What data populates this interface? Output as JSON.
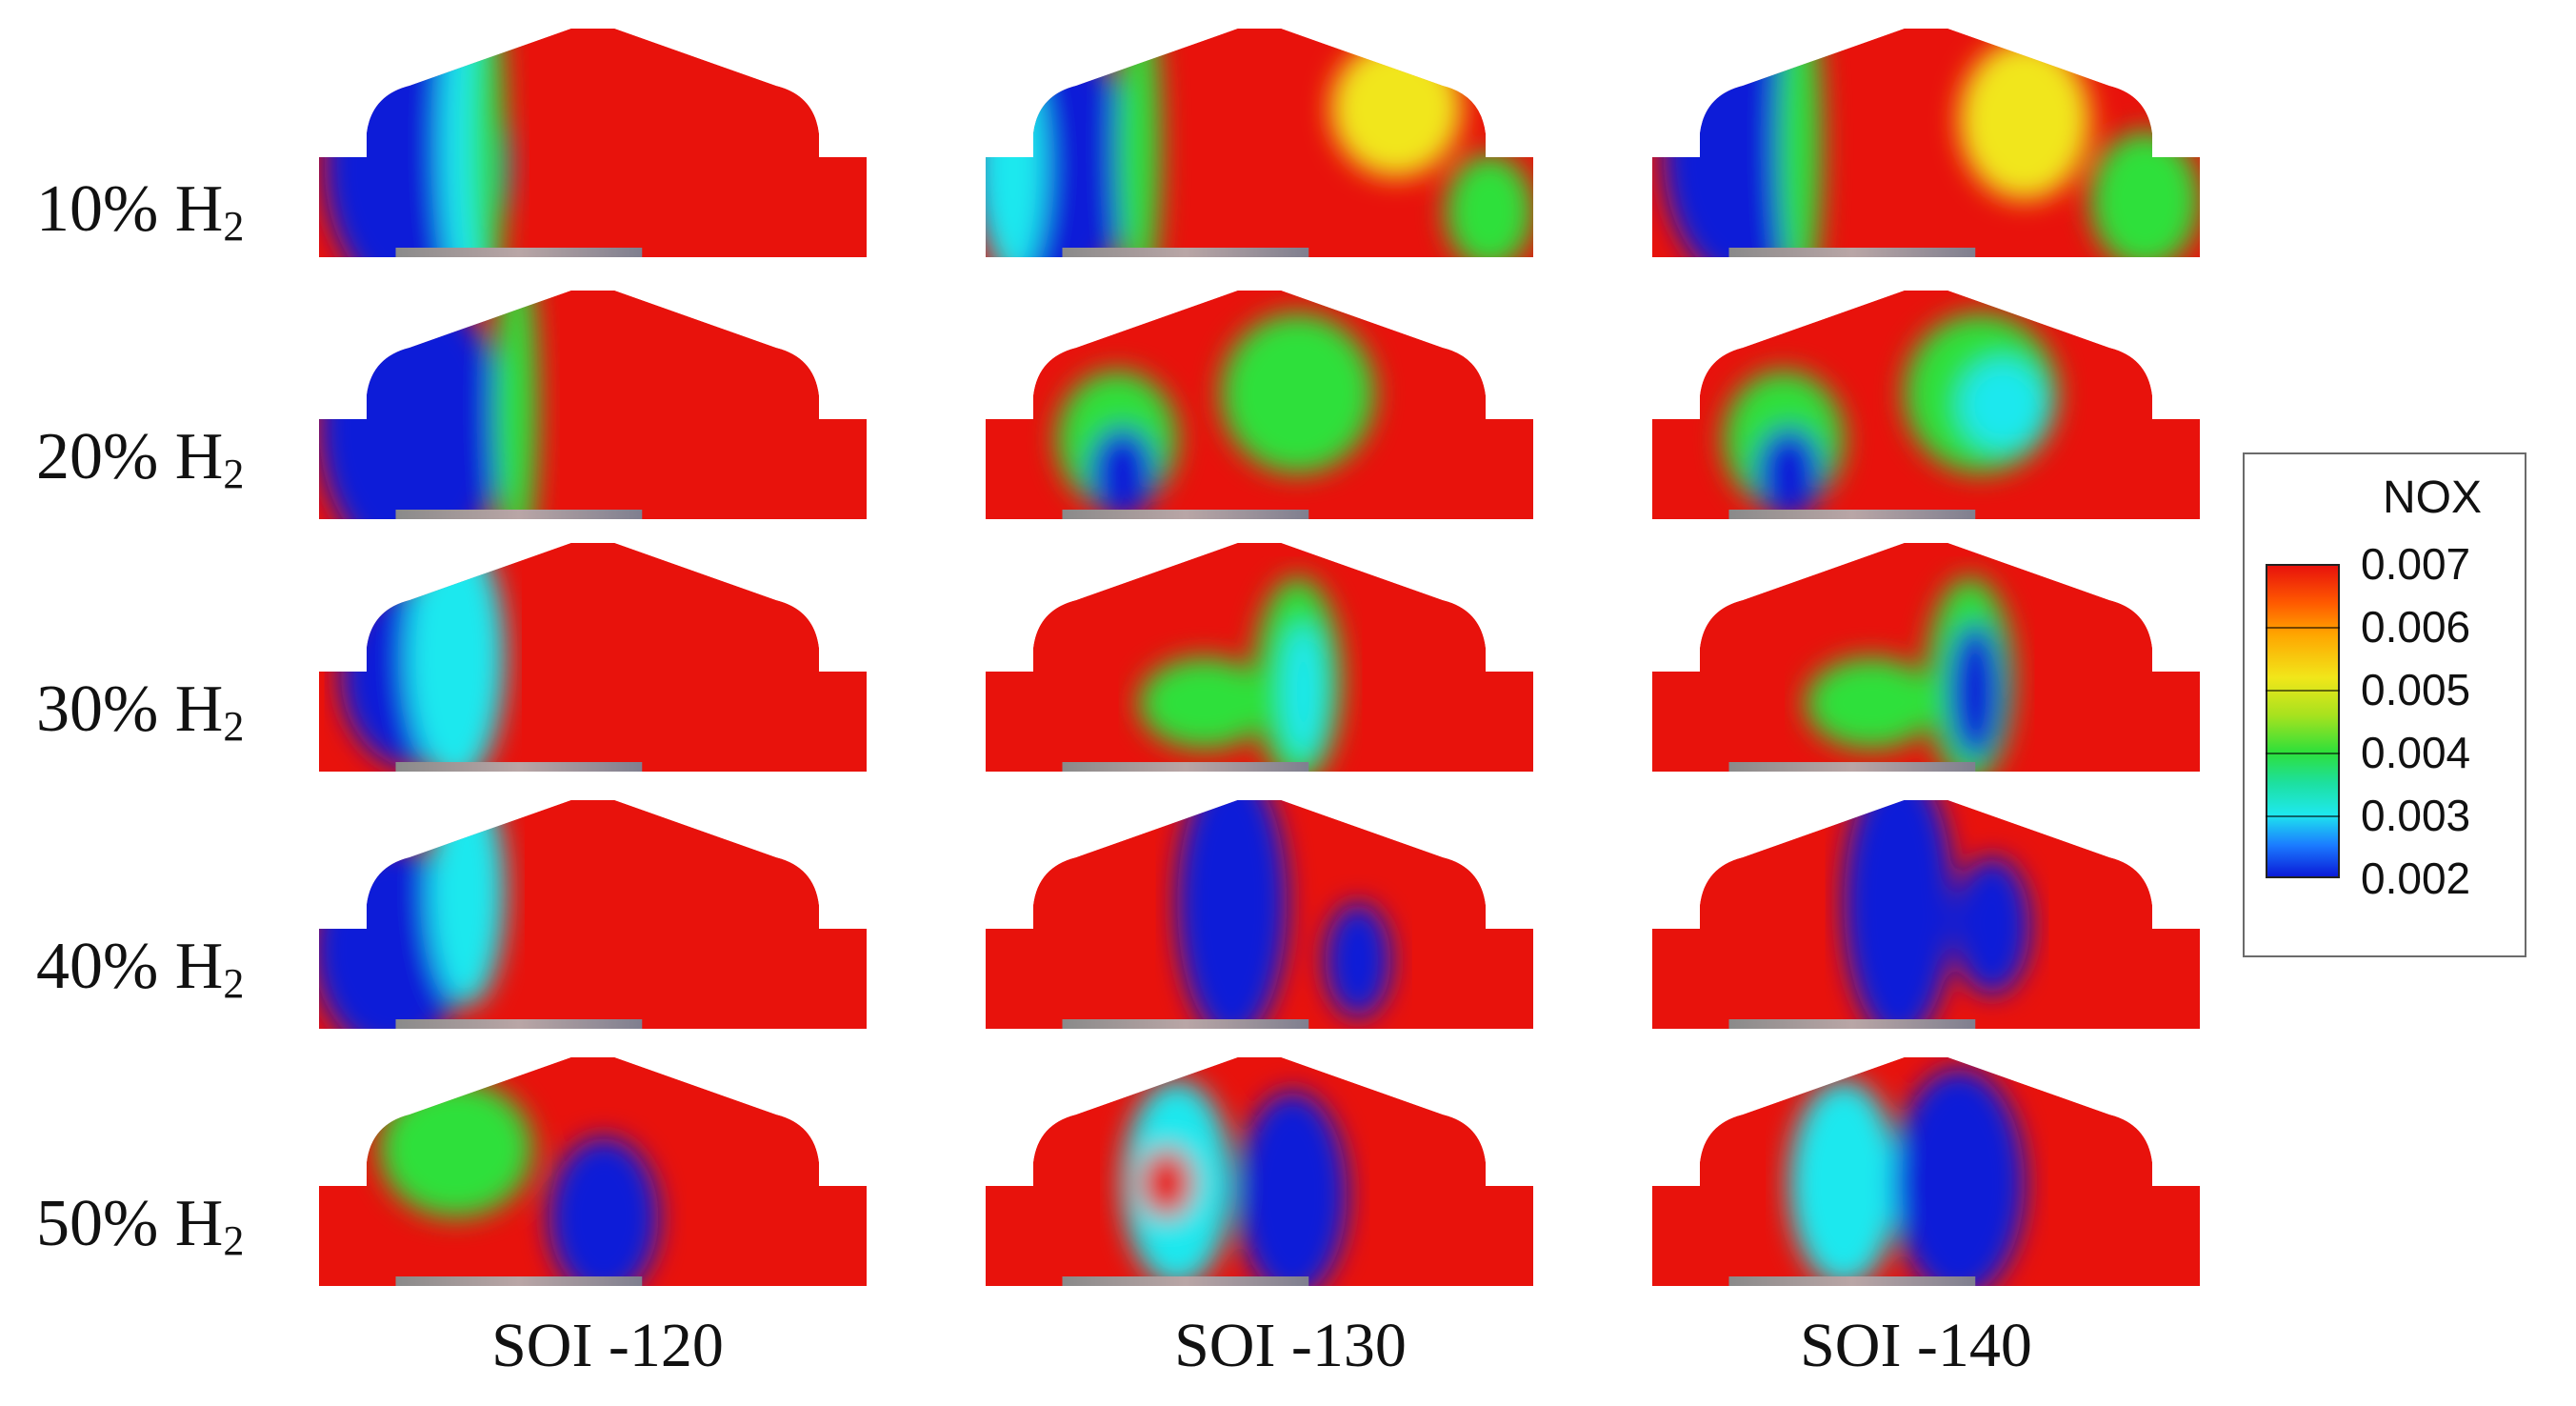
{
  "rows": [
    {
      "prefix": "10% H",
      "sub": "2"
    },
    {
      "prefix": "20% H",
      "sub": "2"
    },
    {
      "prefix": "30% H",
      "sub": "2"
    },
    {
      "prefix": "40% H",
      "sub": "2"
    },
    {
      "prefix": "50% H",
      "sub": "2"
    }
  ],
  "columns": [
    "SOI -120",
    "SOI -130",
    "SOI -140"
  ],
  "legend": {
    "title": "NOX",
    "values": [
      "0.007",
      "0.006",
      "0.005",
      "0.004",
      "0.003",
      "0.002"
    ]
  },
  "colors": {
    "high": "#e8120c",
    "mid_high": "#f1e61a",
    "mid": "#2ee03a",
    "mid_low": "#1ee8ee",
    "low": "#0a1bd8"
  }
}
